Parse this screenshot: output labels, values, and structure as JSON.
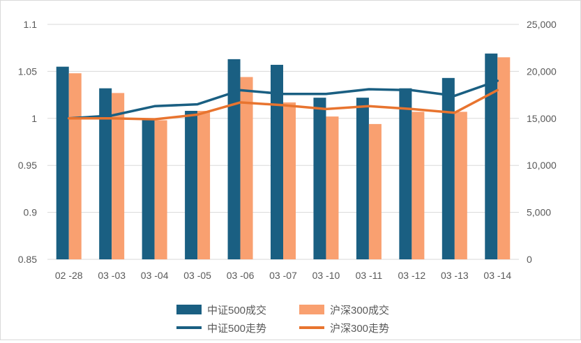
{
  "chart_data": {
    "type": "bar",
    "categories": [
      "02 -28",
      "03 -03",
      "03 -04",
      "03 -05",
      "03 -06",
      "03 -07",
      "03 -10",
      "03 -11",
      "03 -12",
      "03 -13",
      "03 -14"
    ],
    "left_axis": {
      "min": 0.85,
      "max": 1.1,
      "ticks": [
        0.85,
        0.9,
        0.95,
        1,
        1.05,
        1.1
      ],
      "tick_labels": [
        "0.85",
        "0.9",
        "0.95",
        "1",
        "1.05",
        "1.1"
      ]
    },
    "right_axis": {
      "min": 0,
      "max": 25000,
      "ticks": [
        0,
        5000,
        10000,
        15000,
        20000,
        25000
      ],
      "tick_labels": [
        "0",
        "5,000",
        "10,000",
        "15,000",
        "20,000",
        "25,000"
      ]
    },
    "series": [
      {
        "name": "中证500成交",
        "kind": "bar",
        "axis": "right",
        "color": "#1a5f82",
        "values": [
          20500,
          18200,
          15000,
          15800,
          21300,
          20700,
          17200,
          17200,
          18200,
          19300,
          21900
        ]
      },
      {
        "name": "沪深300成交",
        "kind": "bar",
        "axis": "right",
        "color": "#f9a070",
        "values": [
          19800,
          17700,
          14800,
          15800,
          19400,
          16700,
          15200,
          14400,
          15700,
          15700,
          21500
        ]
      },
      {
        "name": "中证500走势",
        "kind": "line",
        "axis": "left",
        "color": "#1a5f82",
        "values": [
          1.0,
          1.003,
          1.013,
          1.015,
          1.03,
          1.026,
          1.026,
          1.031,
          1.03,
          1.024,
          1.04
        ]
      },
      {
        "name": "沪深300走势",
        "kind": "line",
        "axis": "left",
        "color": "#e8742f",
        "values": [
          1.0,
          1.0,
          0.999,
          1.004,
          1.017,
          1.014,
          1.01,
          1.013,
          1.01,
          1.006,
          1.03
        ]
      }
    ],
    "grid": true,
    "legend_position": "bottom"
  }
}
